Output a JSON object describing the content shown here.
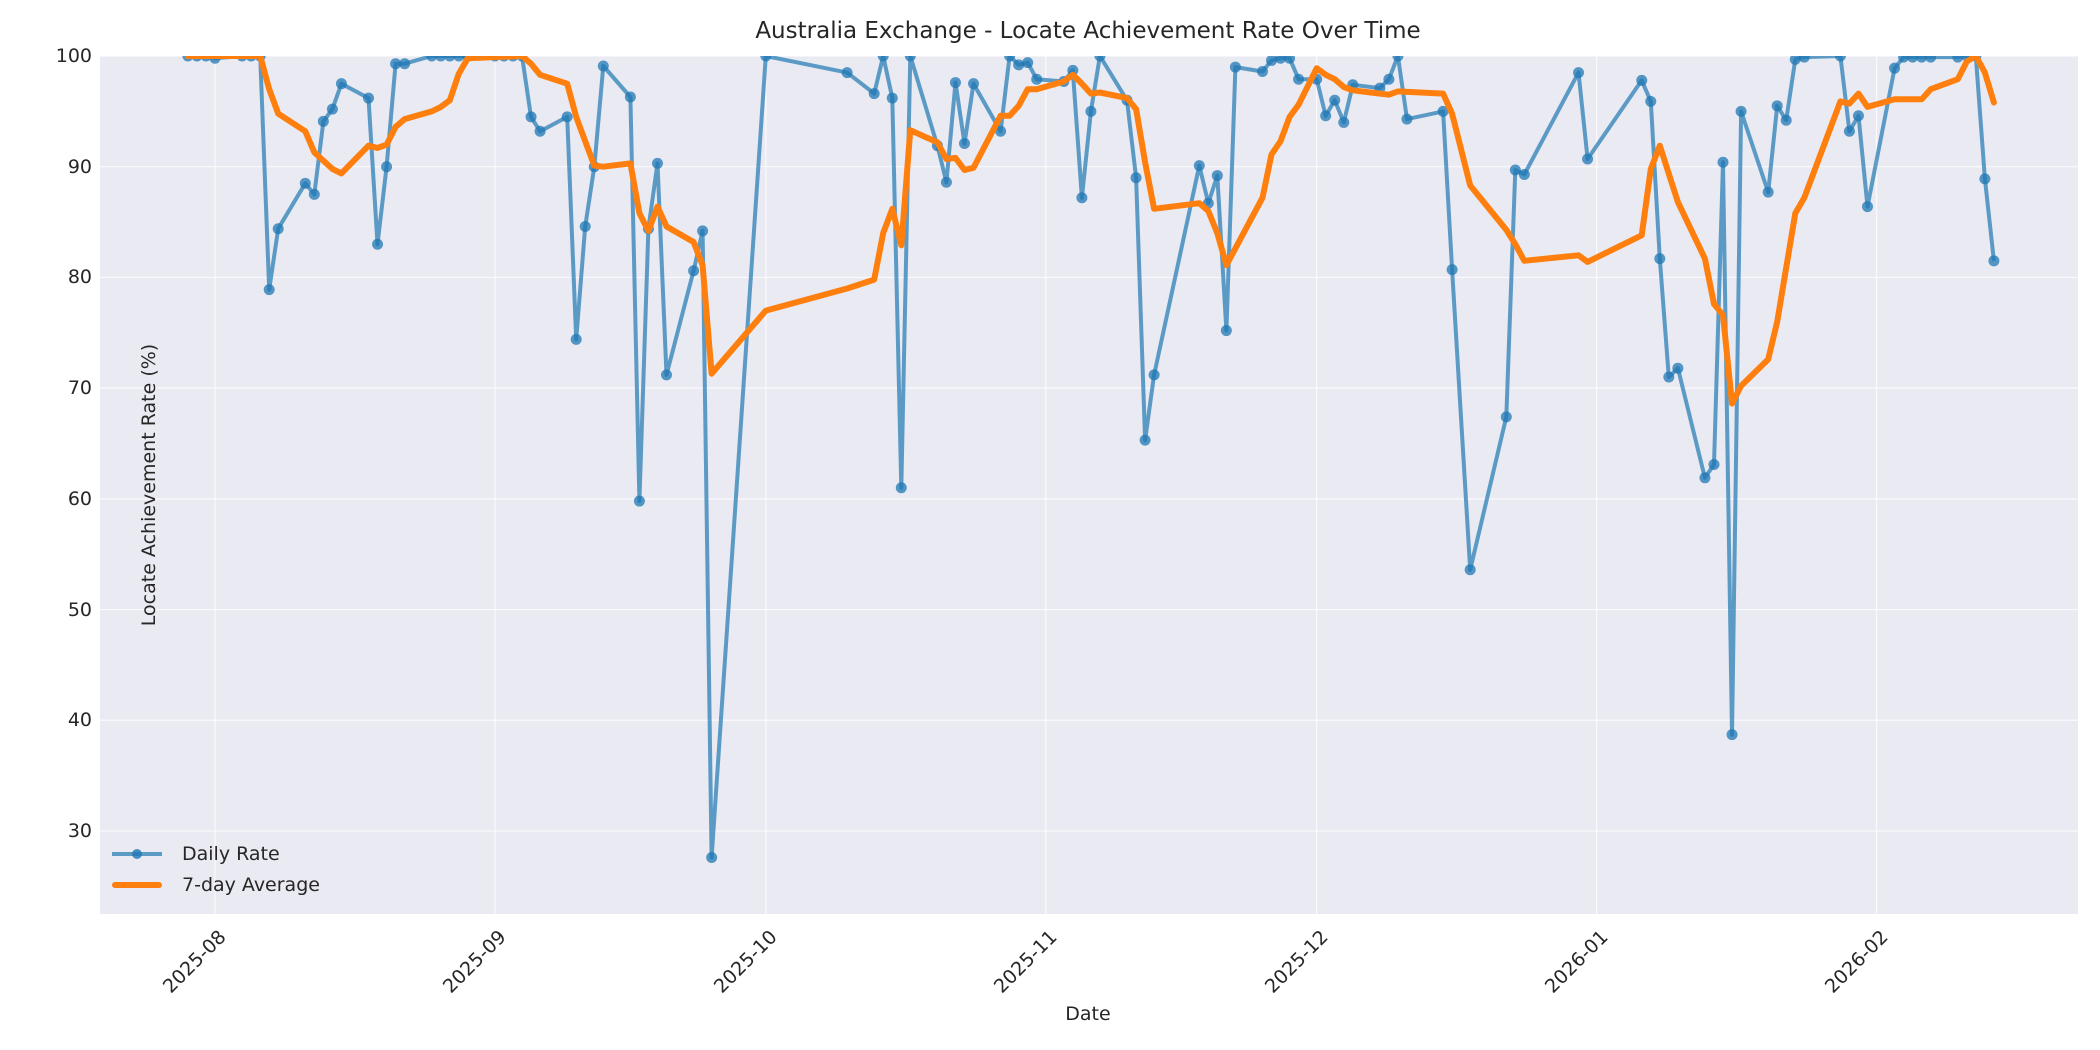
{
  "chart_data": {
    "type": "line",
    "title": "Australia Exchange - Locate Achievement Rate Over Time",
    "xlabel": "Date",
    "ylabel": "Locate Achievement Rate (%)",
    "ylim": [
      22.5,
      100
    ],
    "yticks": [
      30,
      40,
      50,
      60,
      70,
      80,
      90,
      100
    ],
    "xticks": [
      "2025-08",
      "2025-09",
      "2025-10",
      "2025-11",
      "2025-12",
      "2026-01",
      "2026-02"
    ],
    "xlim": [
      "2025-07-22",
      "2026-02-25"
    ],
    "grid": true,
    "legend_position": "lower left",
    "colors": {
      "daily": "#1f77b4",
      "avg": "#ff7f0e",
      "background": "#eaeaf2",
      "grid": "#ffffff"
    },
    "series": [
      {
        "name": "Daily Rate",
        "style": "line-with-markers",
        "points": [
          [
            "2025-07-29",
            100
          ],
          [
            "2025-07-30",
            100
          ],
          [
            "2025-07-31",
            100
          ],
          [
            "2025-08-01",
            99.8
          ],
          [
            "2025-08-04",
            100
          ],
          [
            "2025-08-05",
            100
          ],
          [
            "2025-08-06",
            100
          ],
          [
            "2025-08-07",
            78.9
          ],
          [
            "2025-08-08",
            84.4
          ],
          [
            "2025-08-11",
            88.5
          ],
          [
            "2025-08-12",
            87.5
          ],
          [
            "2025-08-13",
            94.1
          ],
          [
            "2025-08-14",
            95.2
          ],
          [
            "2025-08-15",
            97.5
          ],
          [
            "2025-08-18",
            96.2
          ],
          [
            "2025-08-19",
            83.0
          ],
          [
            "2025-08-20",
            90.0
          ],
          [
            "2025-08-21",
            99.3
          ],
          [
            "2025-08-22",
            99.3
          ],
          [
            "2025-08-25",
            100
          ],
          [
            "2025-08-26",
            100
          ],
          [
            "2025-08-27",
            100
          ],
          [
            "2025-08-28",
            100
          ],
          [
            "2025-08-29",
            100
          ],
          [
            "2025-09-01",
            100
          ],
          [
            "2025-09-02",
            100
          ],
          [
            "2025-09-03",
            100
          ],
          [
            "2025-09-04",
            100
          ],
          [
            "2025-09-05",
            94.5
          ],
          [
            "2025-09-06",
            93.2
          ],
          [
            "2025-09-09",
            94.5
          ],
          [
            "2025-09-10",
            74.4
          ],
          [
            "2025-09-11",
            84.6
          ],
          [
            "2025-09-12",
            90.0
          ],
          [
            "2025-09-13",
            99.1
          ],
          [
            "2025-09-16",
            96.3
          ],
          [
            "2025-09-17",
            59.8
          ],
          [
            "2025-09-18",
            84.4
          ],
          [
            "2025-09-19",
            90.3
          ],
          [
            "2025-09-20",
            71.2
          ],
          [
            "2025-09-23",
            80.6
          ],
          [
            "2025-09-24",
            84.2
          ],
          [
            "2025-09-25",
            27.6
          ],
          [
            "2025-10-01",
            100
          ],
          [
            "2025-10-10",
            98.5
          ],
          [
            "2025-10-13",
            96.6
          ],
          [
            "2025-10-14",
            100
          ],
          [
            "2025-10-15",
            96.2
          ],
          [
            "2025-10-16",
            61.0
          ],
          [
            "2025-10-17",
            100
          ],
          [
            "2025-10-20",
            91.9
          ],
          [
            "2025-10-21",
            88.6
          ],
          [
            "2025-10-22",
            97.6
          ],
          [
            "2025-10-23",
            92.1
          ],
          [
            "2025-10-24",
            97.5
          ],
          [
            "2025-10-27",
            93.2
          ],
          [
            "2025-10-28",
            100
          ],
          [
            "2025-10-29",
            99.2
          ],
          [
            "2025-10-30",
            99.4
          ],
          [
            "2025-10-31",
            97.9
          ],
          [
            "2025-11-03",
            97.7
          ],
          [
            "2025-11-04",
            98.7
          ],
          [
            "2025-11-05",
            87.2
          ],
          [
            "2025-11-06",
            95.0
          ],
          [
            "2025-11-07",
            100
          ],
          [
            "2025-11-10",
            96.0
          ],
          [
            "2025-11-11",
            89.0
          ],
          [
            "2025-11-12",
            65.3
          ],
          [
            "2025-11-13",
            71.2
          ],
          [
            "2025-11-18",
            90.1
          ],
          [
            "2025-11-19",
            86.7
          ],
          [
            "2025-11-20",
            89.2
          ],
          [
            "2025-11-21",
            75.2
          ],
          [
            "2025-11-22",
            99.0
          ],
          [
            "2025-11-25",
            98.6
          ],
          [
            "2025-11-26",
            99.6
          ],
          [
            "2025-11-27",
            99.8
          ],
          [
            "2025-11-28",
            99.8
          ],
          [
            "2025-11-29",
            97.9
          ],
          [
            "2025-12-01",
            97.9
          ],
          [
            "2025-12-02",
            94.6
          ],
          [
            "2025-12-03",
            96.0
          ],
          [
            "2025-12-04",
            94.0
          ],
          [
            "2025-12-05",
            97.4
          ],
          [
            "2025-12-08",
            97.1
          ],
          [
            "2025-12-09",
            97.9
          ],
          [
            "2025-12-10",
            100
          ],
          [
            "2025-12-11",
            94.3
          ],
          [
            "2025-12-15",
            95.0
          ],
          [
            "2025-12-16",
            80.7
          ],
          [
            "2025-12-18",
            53.6
          ],
          [
            "2025-12-22",
            67.4
          ],
          [
            "2025-12-23",
            89.7
          ],
          [
            "2025-12-24",
            89.3
          ],
          [
            "2025-12-30",
            98.5
          ],
          [
            "2025-12-31",
            90.7
          ],
          [
            "2026-01-06",
            97.8
          ],
          [
            "2026-01-07",
            95.9
          ],
          [
            "2026-01-08",
            81.7
          ],
          [
            "2026-01-09",
            71.0
          ],
          [
            "2026-01-10",
            71.8
          ],
          [
            "2026-01-13",
            61.9
          ],
          [
            "2026-01-14",
            63.1
          ],
          [
            "2026-01-15",
            90.4
          ],
          [
            "2026-01-16",
            38.7
          ],
          [
            "2026-01-17",
            95.0
          ],
          [
            "2026-01-20",
            87.7
          ],
          [
            "2026-01-21",
            95.5
          ],
          [
            "2026-01-22",
            94.2
          ],
          [
            "2026-01-23",
            99.7
          ],
          [
            "2026-01-24",
            99.9
          ],
          [
            "2026-01-28",
            100
          ],
          [
            "2026-01-29",
            93.2
          ],
          [
            "2026-01-30",
            94.6
          ],
          [
            "2026-01-31",
            86.4
          ],
          [
            "2026-02-03",
            98.9
          ],
          [
            "2026-02-04",
            99.9
          ],
          [
            "2026-02-05",
            99.9
          ],
          [
            "2026-02-06",
            99.9
          ],
          [
            "2026-02-07",
            99.9
          ],
          [
            "2026-02-10",
            99.9
          ],
          [
            "2026-02-11",
            100
          ],
          [
            "2026-02-12",
            100
          ],
          [
            "2026-02-13",
            88.9
          ],
          [
            "2026-02-14",
            81.5
          ]
        ]
      },
      {
        "name": "7-day Average",
        "style": "thick-line",
        "points": [
          [
            "2025-07-29",
            100
          ],
          [
            "2025-08-06",
            100
          ],
          [
            "2025-08-07",
            97.0
          ],
          [
            "2025-08-08",
            94.8
          ],
          [
            "2025-08-11",
            93.2
          ],
          [
            "2025-08-12",
            91.3
          ],
          [
            "2025-08-14",
            89.8
          ],
          [
            "2025-08-15",
            89.4
          ],
          [
            "2025-08-18",
            91.9
          ],
          [
            "2025-08-19",
            91.7
          ],
          [
            "2025-08-20",
            92.0
          ],
          [
            "2025-08-21",
            93.6
          ],
          [
            "2025-08-22",
            94.3
          ],
          [
            "2025-08-25",
            95.0
          ],
          [
            "2025-08-26",
            95.4
          ],
          [
            "2025-08-27",
            96.0
          ],
          [
            "2025-08-28",
            98.4
          ],
          [
            "2025-08-29",
            99.8
          ],
          [
            "2025-09-04",
            100
          ],
          [
            "2025-09-05",
            99.3
          ],
          [
            "2025-09-06",
            98.3
          ],
          [
            "2025-09-09",
            97.5
          ],
          [
            "2025-09-10",
            94.5
          ],
          [
            "2025-09-11",
            92.3
          ],
          [
            "2025-09-12",
            90.1
          ],
          [
            "2025-09-13",
            90.0
          ],
          [
            "2025-09-16",
            90.3
          ],
          [
            "2025-09-17",
            85.8
          ],
          [
            "2025-09-18",
            84.2
          ],
          [
            "2025-09-19",
            86.4
          ],
          [
            "2025-09-20",
            84.6
          ],
          [
            "2025-09-23",
            83.2
          ],
          [
            "2025-09-24",
            81.1
          ],
          [
            "2025-09-25",
            71.3
          ],
          [
            "2025-10-01",
            77.0
          ],
          [
            "2025-10-10",
            79.0
          ],
          [
            "2025-10-13",
            79.8
          ],
          [
            "2025-10-14",
            84.0
          ],
          [
            "2025-10-15",
            86.2
          ],
          [
            "2025-10-16",
            82.9
          ],
          [
            "2025-10-17",
            93.3
          ],
          [
            "2025-10-20",
            92.2
          ],
          [
            "2025-10-21",
            90.7
          ],
          [
            "2025-10-22",
            90.8
          ],
          [
            "2025-10-23",
            89.7
          ],
          [
            "2025-10-24",
            89.9
          ],
          [
            "2025-10-27",
            94.6
          ],
          [
            "2025-10-28",
            94.6
          ],
          [
            "2025-10-29",
            95.5
          ],
          [
            "2025-10-30",
            97.0
          ],
          [
            "2025-10-31",
            97.0
          ],
          [
            "2025-11-03",
            97.7
          ],
          [
            "2025-11-04",
            98.3
          ],
          [
            "2025-11-05",
            97.5
          ],
          [
            "2025-11-06",
            96.6
          ],
          [
            "2025-11-07",
            96.7
          ],
          [
            "2025-11-10",
            96.2
          ],
          [
            "2025-11-11",
            95.2
          ],
          [
            "2025-11-12",
            90.4
          ],
          [
            "2025-11-13",
            86.2
          ],
          [
            "2025-11-18",
            86.7
          ],
          [
            "2025-11-19",
            86.0
          ],
          [
            "2025-11-20",
            84.0
          ],
          [
            "2025-11-21",
            81.1
          ],
          [
            "2025-11-25",
            87.2
          ],
          [
            "2025-11-26",
            91.1
          ],
          [
            "2025-11-27",
            92.3
          ],
          [
            "2025-11-28",
            94.5
          ],
          [
            "2025-11-29",
            95.6
          ],
          [
            "2025-12-01",
            98.9
          ],
          [
            "2025-12-02",
            98.3
          ],
          [
            "2025-12-03",
            97.9
          ],
          [
            "2025-12-04",
            97.2
          ],
          [
            "2025-12-05",
            96.9
          ],
          [
            "2025-12-08",
            96.6
          ],
          [
            "2025-12-09",
            96.5
          ],
          [
            "2025-12-10",
            96.8
          ],
          [
            "2025-12-15",
            96.6
          ],
          [
            "2025-12-16",
            94.8
          ],
          [
            "2025-12-18",
            88.3
          ],
          [
            "2025-12-22",
            84.3
          ],
          [
            "2025-12-23",
            83.0
          ],
          [
            "2025-12-24",
            81.5
          ],
          [
            "2025-12-30",
            82.0
          ],
          [
            "2025-12-31",
            81.4
          ],
          [
            "2026-01-06",
            83.8
          ],
          [
            "2026-01-07",
            89.8
          ],
          [
            "2026-01-08",
            91.9
          ],
          [
            "2026-01-10",
            86.8
          ],
          [
            "2026-01-13",
            81.7
          ],
          [
            "2026-01-14",
            77.6
          ],
          [
            "2026-01-15",
            76.6
          ],
          [
            "2026-01-16",
            68.6
          ],
          [
            "2026-01-17",
            70.2
          ],
          [
            "2026-01-20",
            72.6
          ],
          [
            "2026-01-21",
            76.0
          ],
          [
            "2026-01-23",
            85.8
          ],
          [
            "2026-01-24",
            87.2
          ],
          [
            "2026-01-28",
            95.9
          ],
          [
            "2026-01-29",
            95.7
          ],
          [
            "2026-01-30",
            96.6
          ],
          [
            "2026-01-31",
            95.4
          ],
          [
            "2026-02-03",
            96.1
          ],
          [
            "2026-02-06",
            96.1
          ],
          [
            "2026-02-07",
            97.0
          ],
          [
            "2026-02-10",
            97.9
          ],
          [
            "2026-02-11",
            99.5
          ],
          [
            "2026-02-12",
            100
          ],
          [
            "2026-02-13",
            98.5
          ],
          [
            "2026-02-14",
            95.8
          ]
        ]
      }
    ]
  },
  "legend": {
    "items": [
      {
        "label": "Daily Rate"
      },
      {
        "label": "7-day Average"
      }
    ]
  }
}
